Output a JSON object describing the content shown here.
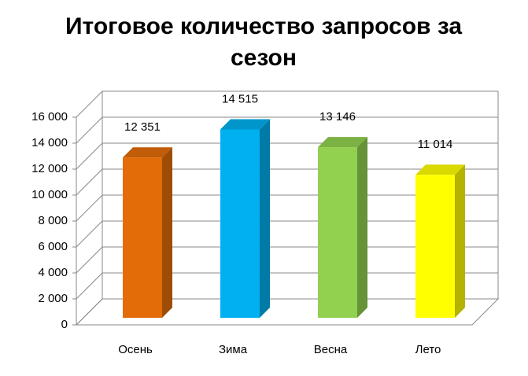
{
  "chart_data": {
    "type": "bar3d",
    "title": "Итоговое количество запросов за сезон",
    "categories": [
      "Осень",
      "Зима",
      "Весна",
      "Лето"
    ],
    "values": [
      12351,
      14515,
      13146,
      11014
    ],
    "value_labels": [
      "12 351",
      "14 515",
      "13 146",
      "11 014"
    ],
    "colors": [
      "#e36c09",
      "#00b0f0",
      "#92d050",
      "#ffff00"
    ],
    "ylim": [
      0,
      16000
    ],
    "yticks": [
      0,
      {
        "value": 2000,
        "label": "2 000"
      },
      {
        "value": 4000,
        "label": "4 000"
      },
      {
        "value": 6000,
        "label": "6 000"
      },
      {
        "value": 8000,
        "label": "8 000"
      },
      {
        "value": 10000,
        "label": "10 000"
      },
      {
        "value": 12000,
        "label": "12 000"
      },
      {
        "value": 14000,
        "label": "14 000"
      },
      {
        "value": 16000,
        "label": "16 000"
      }
    ],
    "grid": true
  }
}
